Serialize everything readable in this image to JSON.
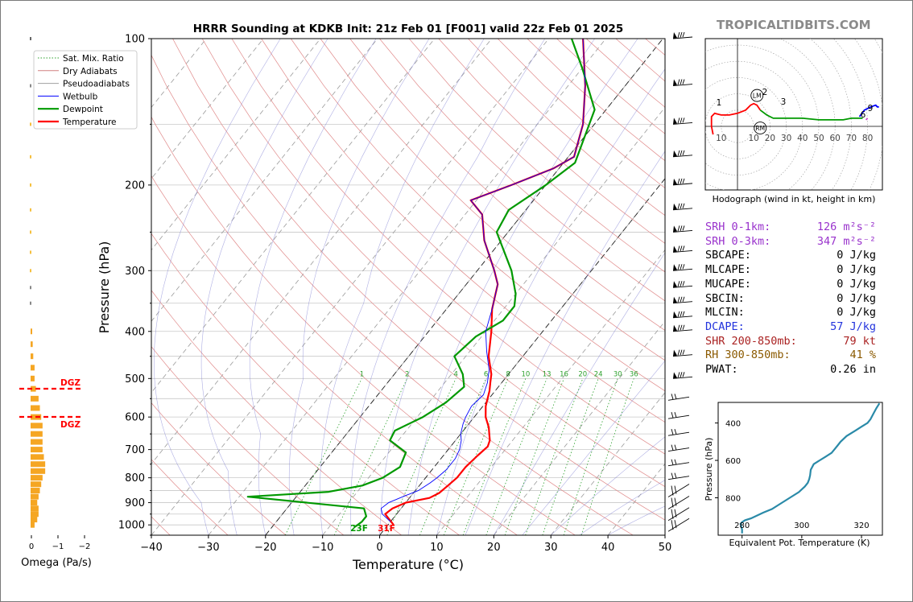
{
  "header": {
    "title": "HRRR Sounding at KDKB Init: 21z Feb 01 [F001] valid 22z Feb 01 2025",
    "brand": "TROPICALTIDBITS.COM"
  },
  "chart_data": [
    {
      "type": "skew-t",
      "title": "HRRR Sounding at KDKB Init: 21z Feb 01 [F001] valid 22z Feb 01 2025",
      "xlabel": "Temperature (°C)",
      "ylabel": "Pressure (hPa)",
      "xlim": [
        -40,
        50
      ],
      "ylim": [
        1050,
        100
      ],
      "log_y": true,
      "x_ticks": [
        "−40",
        "−30",
        "−20",
        "−10",
        "0",
        "10",
        "20",
        "30",
        "40",
        "50"
      ],
      "y_ticks": [
        "100",
        "200",
        "300",
        "400",
        "500",
        "600",
        "700",
        "800",
        "900",
        "1000"
      ],
      "legend": {
        "position": "top-left",
        "entries": [
          {
            "label": "Sat. Mix. Ratio",
            "color": "#2ca02c",
            "style": "dotted"
          },
          {
            "label": "Dry Adiabats",
            "color": "#d08080",
            "style": "solid"
          },
          {
            "label": "Pseudoadiabats",
            "color": "#a0a0a0",
            "style": "solid"
          },
          {
            "label": "Wetbulb",
            "color": "#0000ff",
            "style": "solid"
          },
          {
            "label": "Dewpoint",
            "color": "#009900",
            "style": "solid"
          },
          {
            "label": "Temperature",
            "color": "#ff0000",
            "style": "solid"
          }
        ]
      },
      "series": [
        {
          "name": "Temperature",
          "color": "#ff0000",
          "points": [
            [
              1,
              1000
            ],
            [
              -2,
              950
            ],
            [
              -1.5,
              925
            ],
            [
              0,
              900
            ],
            [
              3.5,
              880
            ],
            [
              4.5,
              860
            ],
            [
              5,
              830
            ],
            [
              5.5,
              800
            ],
            [
              5.5,
              760
            ],
            [
              6,
              720
            ],
            [
              6.5,
              690
            ],
            [
              6,
              670
            ],
            [
              5,
              650
            ],
            [
              4,
              630
            ],
            [
              2,
              600
            ],
            [
              0.5,
              570
            ],
            [
              -1,
              530
            ],
            [
              -2,
              510
            ],
            [
              -3,
              490
            ],
            [
              -6,
              450
            ],
            [
              -9,
              400
            ],
            [
              -12,
              360
            ],
            [
              -14.5,
              320
            ],
            [
              -17,
              300
            ],
            [
              -23,
              260
            ],
            [
              -27,
              230
            ],
            [
              -31,
              215
            ],
            [
              -26,
              200
            ],
            [
              -21,
              185
            ],
            [
              -19,
              175
            ],
            [
              -22,
              150
            ],
            [
              -27,
              125
            ],
            [
              -34,
              100
            ]
          ]
        },
        {
          "name": "Dewpoint",
          "color": "#009900",
          "points": [
            [
              -5.5,
              1010
            ],
            [
              -5,
              985
            ],
            [
              -5,
              960
            ],
            [
              -6.5,
              925
            ],
            [
              -28.5,
              875
            ],
            [
              -15,
              855
            ],
            [
              -10,
              830
            ],
            [
              -7.5,
              800
            ],
            [
              -6,
              760
            ],
            [
              -7,
              710
            ],
            [
              -11.5,
              670
            ],
            [
              -12,
              640
            ],
            [
              -9,
              600
            ],
            [
              -7,
              560
            ],
            [
              -6,
              520
            ],
            [
              -8,
              490
            ],
            [
              -12,
              450
            ],
            [
              -11,
              410
            ],
            [
              -8.5,
              380
            ],
            [
              -8.5,
              355
            ],
            [
              -10,
              335
            ],
            [
              -14,
              300
            ],
            [
              -22,
              250
            ],
            [
              -23,
              225
            ],
            [
              -20,
              200
            ],
            [
              -18,
              180
            ],
            [
              -22,
              140
            ],
            [
              -30,
              115
            ],
            [
              -36,
              100
            ]
          ]
        },
        {
          "name": "Wetbulb",
          "color": "#0000ff",
          "points": [
            [
              0,
              985
            ],
            [
              -2.5,
              950
            ],
            [
              -3.5,
              925
            ],
            [
              -3,
              900
            ],
            [
              -1,
              870
            ],
            [
              0.5,
              850
            ],
            [
              1.5,
              820
            ],
            [
              2,
              800
            ],
            [
              2.5,
              770
            ],
            [
              2.5,
              730
            ],
            [
              2,
              700
            ],
            [
              1,
              670
            ],
            [
              0,
              650
            ],
            [
              -1,
              620
            ],
            [
              -1.5,
              600
            ],
            [
              -2,
              570
            ],
            [
              -1.5,
              540
            ],
            [
              -2.5,
              510
            ],
            [
              -4,
              480
            ],
            [
              -7,
              440
            ],
            [
              -10,
              400
            ],
            [
              -12,
              360
            ],
            [
              -14.5,
              320
            ],
            [
              -17,
              300
            ],
            [
              -23,
              260
            ],
            [
              -27,
              230
            ],
            [
              -31,
              215
            ],
            [
              -26,
              200
            ],
            [
              -21,
              185
            ],
            [
              -19,
              175
            ],
            [
              -22,
              150
            ],
            [
              -27,
              125
            ],
            [
              -34,
              100
            ]
          ]
        }
      ],
      "mixing_ratio_labels": [
        "1",
        "2",
        "4",
        "6",
        "8",
        "10",
        "13",
        "16",
        "20",
        "24",
        "30",
        "36"
      ],
      "surface_labels": [
        {
          "text": "23F",
          "color": "#009900"
        },
        {
          "text": "31F",
          "color": "#ff0000"
        }
      ],
      "wind_barbs_levels": [
        100,
        125,
        150,
        175,
        200,
        225,
        250,
        275,
        300,
        325,
        350,
        375,
        400,
        450,
        500,
        550,
        600,
        650,
        700,
        750,
        800,
        850,
        900,
        950,
        1000
      ]
    },
    {
      "type": "bar",
      "title": "",
      "xlabel": "Omega (Pa/s)",
      "x_ticks": [
        "0",
        "−1",
        "−2"
      ],
      "xlim": [
        0,
        -2
      ],
      "color": "#f5a623",
      "levels": [
        1000,
        975,
        950,
        925,
        900,
        875,
        850,
        825,
        800,
        775,
        750,
        725,
        700,
        675,
        650,
        625,
        600,
        575,
        550,
        525,
        500,
        475,
        450,
        425,
        400
      ],
      "values": [
        -0.15,
        -0.25,
        -0.3,
        -0.3,
        -0.25,
        -0.3,
        -0.35,
        -0.4,
        -0.45,
        -0.55,
        -0.55,
        -0.5,
        -0.45,
        -0.45,
        -0.45,
        -0.45,
        -0.4,
        -0.35,
        -0.3,
        -0.2,
        -0.15,
        -0.15,
        -0.1,
        -0.08,
        -0.05
      ],
      "dgz_label": "DGZ",
      "dgz_color": "#ff0000"
    },
    {
      "type": "hodograph",
      "caption": "Hodograph (wind in kt, height in km)",
      "ring_labels": [
        "10",
        "10",
        "20",
        "30",
        "40",
        "50",
        "60",
        "70",
        "80"
      ],
      "markers": [
        "LM",
        "RM"
      ],
      "height_labels": [
        "1",
        "2",
        "3",
        "6",
        "9"
      ],
      "segments": [
        {
          "color": "#ff0000",
          "points": [
            [
              -15,
              -5
            ],
            [
              -16,
              0
            ],
            [
              -16,
              6
            ],
            [
              -14,
              8
            ],
            [
              -10,
              7
            ],
            [
              -5,
              7
            ],
            [
              0,
              8
            ],
            [
              5,
              10
            ],
            [
              8,
              13
            ],
            [
              10,
              14
            ],
            [
              12,
              13
            ],
            [
              14,
              10
            ]
          ]
        },
        {
          "color": "#009900",
          "points": [
            [
              14,
              10
            ],
            [
              18,
              7
            ],
            [
              22,
              5
            ],
            [
              30,
              5
            ],
            [
              40,
              5
            ],
            [
              50,
              4
            ],
            [
              58,
              4
            ],
            [
              65,
              4
            ],
            [
              70,
              5
            ],
            [
              74,
              5
            ],
            [
              77,
              5
            ]
          ]
        },
        {
          "color": "#0000ff",
          "points": [
            [
              75,
              6
            ],
            [
              78,
              10
            ],
            [
              82,
              12
            ],
            [
              85,
              13
            ],
            [
              86,
              12
            ],
            [
              87,
              12
            ]
          ]
        },
        {
          "color": "#cc44cc",
          "points": [
            [
              79,
              4
            ],
            [
              80,
              5
            ]
          ]
        }
      ],
      "lm": [
        12,
        19
      ],
      "rm": [
        14,
        -1
      ]
    },
    {
      "type": "line",
      "title": "",
      "xlabel": "Equivalent Pot. Temperature (K)",
      "ylabel": "Pressure (hPa)",
      "x_ticks": [
        "280",
        "300",
        "320"
      ],
      "y_ticks": [
        "400",
        "600",
        "800"
      ],
      "xlim": [
        272,
        327
      ],
      "ylim": [
        1000,
        290
      ],
      "color": "#2a8aa8",
      "points": [
        [
          280,
          990
        ],
        [
          280,
          970
        ],
        [
          279.5,
          940
        ],
        [
          280,
          930
        ],
        [
          281,
          920
        ],
        [
          283,
          910
        ],
        [
          285,
          895
        ],
        [
          287,
          880
        ],
        [
          290,
          860
        ],
        [
          293,
          830
        ],
        [
          296,
          800
        ],
        [
          299,
          770
        ],
        [
          301,
          740
        ],
        [
          302,
          720
        ],
        [
          302.5,
          700
        ],
        [
          302.8,
          680
        ],
        [
          303,
          650
        ],
        [
          304,
          620
        ],
        [
          306,
          600
        ],
        [
          308,
          580
        ],
        [
          310,
          560
        ],
        [
          311,
          540
        ],
        [
          312,
          520
        ],
        [
          313,
          500
        ],
        [
          315,
          470
        ],
        [
          318,
          440
        ],
        [
          320,
          420
        ],
        [
          322,
          400
        ],
        [
          323,
          380
        ],
        [
          324,
          350
        ],
        [
          325,
          320
        ],
        [
          326,
          295
        ]
      ]
    }
  ],
  "parameters": [
    {
      "label": "SRH 0-1km:",
      "value": "126 m²s⁻²",
      "color": "#9932cc"
    },
    {
      "label": "SRH 0-3km:",
      "value": "347 m²s⁻²",
      "color": "#9932cc"
    },
    {
      "label": "SBCAPE:",
      "value": "0 J/kg",
      "color": "#000000"
    },
    {
      "label": "MLCAPE:",
      "value": "0 J/kg",
      "color": "#000000"
    },
    {
      "label": "MUCAPE:",
      "value": "0 J/kg",
      "color": "#000000"
    },
    {
      "label": "SBCIN:",
      "value": "0 J/kg",
      "color": "#000000"
    },
    {
      "label": "MLCIN:",
      "value": "0 J/kg",
      "color": "#000000"
    },
    {
      "label": "DCAPE:",
      "value": "57 J/kg",
      "color": "#2233dd"
    },
    {
      "label": "SHR 200-850mb:",
      "value": "79 kt",
      "color": "#aa2222"
    },
    {
      "label": "RH 300-850mb:",
      "value": "41 %",
      "color": "#8b5a00"
    },
    {
      "label": "PWAT:",
      "value": "0.26 in",
      "color": "#000000"
    }
  ]
}
